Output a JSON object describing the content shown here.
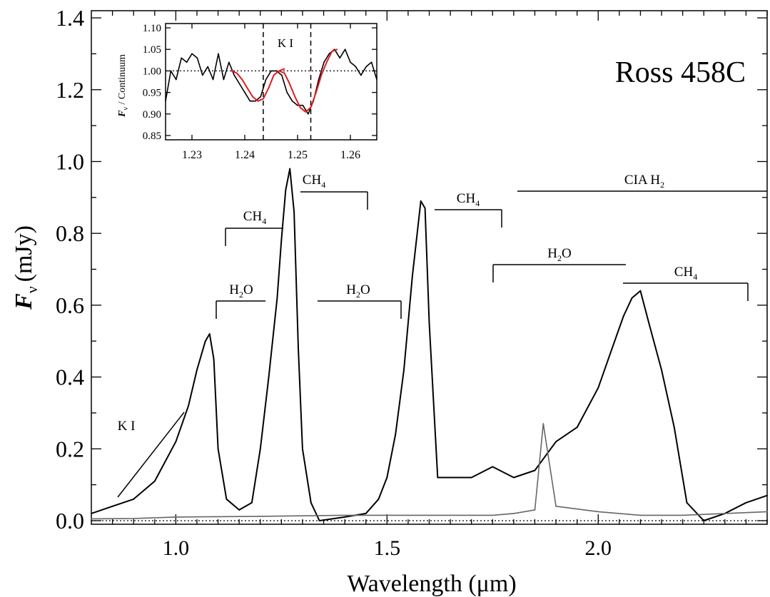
{
  "chart_data": {
    "type": "line",
    "title": "Ross 458C",
    "xlabel": "Wavelength (μm)",
    "ylabel_main": "F",
    "ylabel_sub": "ν",
    "ylabel_unit": "(mJy)",
    "xlim": [
      0.8,
      2.4
    ],
    "ylim": [
      -0.01,
      1.42
    ],
    "xticks": [
      1.0,
      1.5,
      2.0
    ],
    "xtick_labels": [
      "1.0",
      "1.5",
      "2.0"
    ],
    "yticks": [
      0.0,
      0.2,
      0.4,
      0.6,
      0.8,
      1.0,
      1.2,
      1.4
    ],
    "ytick_labels": [
      "0.0",
      "0.2",
      "0.4",
      "0.6",
      "0.8",
      "1.0",
      "1.2",
      "1.4"
    ],
    "series": [
      {
        "role": "spectrum",
        "color": "#000000",
        "x": [
          0.8,
          0.85,
          0.9,
          0.95,
          1.0,
          1.03,
          1.05,
          1.07,
          1.08,
          1.09,
          1.1,
          1.12,
          1.15,
          1.18,
          1.2,
          1.22,
          1.24,
          1.25,
          1.26,
          1.27,
          1.28,
          1.29,
          1.3,
          1.32,
          1.34,
          1.4,
          1.45,
          1.48,
          1.5,
          1.52,
          1.54,
          1.56,
          1.58,
          1.59,
          1.6,
          1.62,
          1.65,
          1.7,
          1.75,
          1.8,
          1.85,
          1.9,
          1.95,
          2.0,
          2.03,
          2.06,
          2.08,
          2.1,
          2.12,
          2.15,
          2.18,
          2.21,
          2.25,
          2.3,
          2.35,
          2.4
        ],
        "y": [
          0.02,
          0.04,
          0.06,
          0.11,
          0.22,
          0.32,
          0.42,
          0.5,
          0.52,
          0.45,
          0.2,
          0.06,
          0.03,
          0.05,
          0.2,
          0.4,
          0.62,
          0.78,
          0.92,
          0.98,
          0.86,
          0.48,
          0.2,
          0.05,
          0.0,
          0.01,
          0.02,
          0.06,
          0.12,
          0.24,
          0.42,
          0.68,
          0.89,
          0.87,
          0.55,
          0.12,
          0.12,
          0.12,
          0.15,
          0.12,
          0.14,
          0.22,
          0.26,
          0.37,
          0.47,
          0.57,
          0.62,
          0.64,
          0.55,
          0.42,
          0.26,
          0.05,
          0.0,
          0.02,
          0.05,
          0.07
        ]
      },
      {
        "role": "noise",
        "color": "#666666",
        "x": [
          0.8,
          0.9,
          1.0,
          1.2,
          1.4,
          1.6,
          1.75,
          1.8,
          1.85,
          1.87,
          1.9,
          2.0,
          2.1,
          2.2,
          2.3,
          2.4
        ],
        "y": [
          0.005,
          0.006,
          0.01,
          0.012,
          0.015,
          0.015,
          0.015,
          0.02,
          0.03,
          0.27,
          0.04,
          0.025,
          0.015,
          0.015,
          0.02,
          0.025
        ]
      }
    ],
    "annotations": [
      {
        "label": "K I",
        "sub": ""
      },
      {
        "label": "H",
        "sub": "2",
        "suffix": "O"
      },
      {
        "label": "CH",
        "sub": "4",
        "suffix": ""
      },
      {
        "label": "CH",
        "sub": "4",
        "suffix": ""
      },
      {
        "label": "H",
        "sub": "2",
        "suffix": "O"
      },
      {
        "label": "CH",
        "sub": "4",
        "suffix": ""
      },
      {
        "label": "H",
        "sub": "2",
        "suffix": "O"
      },
      {
        "label": "CH",
        "sub": "4",
        "suffix": ""
      },
      {
        "label": "CIA H",
        "sub": "2",
        "suffix": ""
      }
    ],
    "inset": {
      "type": "line",
      "label": "K I",
      "ylabel_main": "F",
      "ylabel_sub": "ν",
      "ylabel_rest": " / Continuum",
      "xlim": [
        1.225,
        1.265
      ],
      "ylim": [
        0.84,
        1.11
      ],
      "xticks": [
        1.23,
        1.24,
        1.25,
        1.26
      ],
      "xtick_labels": [
        "1.23",
        "1.24",
        "1.25",
        "1.26"
      ],
      "yticks": [
        0.85,
        0.9,
        0.95,
        1.0,
        1.05,
        1.1
      ],
      "ytick_labels": [
        "0.85",
        "0.90",
        "0.95",
        "1.00",
        "1.05",
        "1.10"
      ],
      "continuum_level": 1.0,
      "line_centers": [
        1.2435,
        1.2525
      ],
      "series": [
        {
          "role": "observed",
          "color": "#000000",
          "x": [
            1.225,
            1.226,
            1.227,
            1.228,
            1.229,
            1.23,
            1.231,
            1.232,
            1.233,
            1.234,
            1.235,
            1.236,
            1.237,
            1.238,
            1.239,
            1.24,
            1.241,
            1.242,
            1.243,
            1.244,
            1.245,
            1.246,
            1.247,
            1.248,
            1.249,
            1.25,
            1.251,
            1.252,
            1.253,
            1.254,
            1.255,
            1.256,
            1.257,
            1.258,
            1.259,
            1.26,
            1.261,
            1.262,
            1.263,
            1.264,
            1.265
          ],
          "y": [
            0.93,
            1.0,
            0.98,
            1.03,
            1.02,
            1.04,
            1.03,
            0.99,
            1.01,
            0.98,
            1.04,
            0.98,
            1.02,
            0.99,
            0.97,
            0.95,
            0.93,
            0.93,
            0.94,
            0.98,
            1.0,
            1.0,
            0.99,
            0.95,
            0.93,
            0.92,
            0.92,
            0.9,
            0.93,
            0.98,
            1.02,
            1.04,
            1.05,
            1.03,
            1.05,
            1.02,
            1.01,
            0.99,
            1.01,
            1.02,
            0.98
          ]
        },
        {
          "role": "fit",
          "color": "#e41a1c",
          "x": [
            1.2375,
            1.2385,
            1.2395,
            1.2405,
            1.2415,
            1.2425,
            1.2435,
            1.2445,
            1.2455,
            1.2465,
            1.2475
          ],
          "y": [
            1.0,
            0.995,
            0.98,
            0.96,
            0.94,
            0.93,
            0.935,
            0.96,
            0.99,
            1.0,
            1.005
          ]
        },
        {
          "role": "fit",
          "color": "#e41a1c",
          "x": [
            1.2465,
            1.2475,
            1.2485,
            1.2495,
            1.2505,
            1.2515,
            1.2525,
            1.2535,
            1.2545,
            1.2555,
            1.2565,
            1.2575
          ],
          "y": [
            1.0,
            0.995,
            0.97,
            0.94,
            0.915,
            0.905,
            0.915,
            0.95,
            0.99,
            1.02,
            1.045,
            1.05
          ]
        }
      ]
    }
  }
}
